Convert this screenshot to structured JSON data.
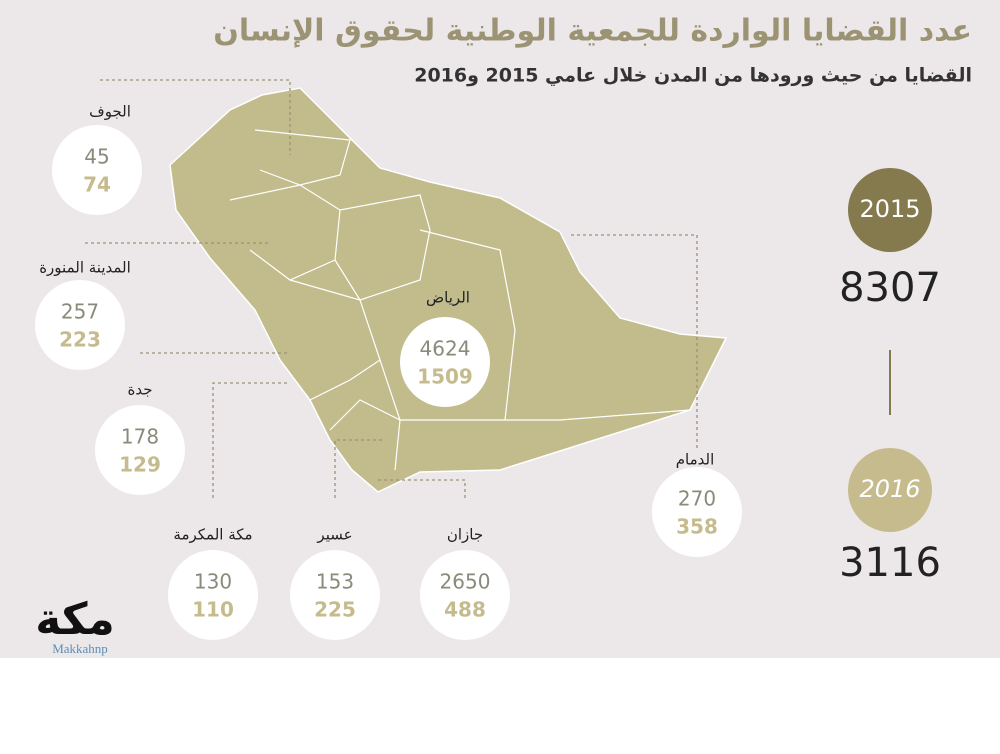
{
  "title": "عدد القضايا الواردة للجمعية الوطنية لحقوق الإنسان",
  "subtitle": "القضايا من حيث ورودها من المدن خلال عامي 2015 و2016",
  "cities": [
    {
      "name": "الجوف",
      "cases_2015": 45,
      "cases_2016": 74
    },
    {
      "name": "المدينة المنورة",
      "cases_2015": 257,
      "cases_2016": 223
    },
    {
      "name": "جدة",
      "cases_2015": 178,
      "cases_2016": 129
    },
    {
      "name": "مكة المكرمة",
      "cases_2015": 130,
      "cases_2016": 110
    },
    {
      "name": "عسير",
      "cases_2015": 153,
      "cases_2016": 225
    },
    {
      "name": "جازان",
      "cases_2015": 2650,
      "cases_2016": 488
    },
    {
      "name": "الدمام",
      "cases_2015": 270,
      "cases_2016": 358
    },
    {
      "name": "الرياض",
      "cases_2015": 4624,
      "cases_2016": 1509
    }
  ],
  "totals": [
    {
      "year": "2015",
      "value": 8307
    },
    {
      "year": "2016",
      "value": 3116
    }
  ],
  "logo": {
    "name": "مكة",
    "handle": "Makkahnp"
  }
}
